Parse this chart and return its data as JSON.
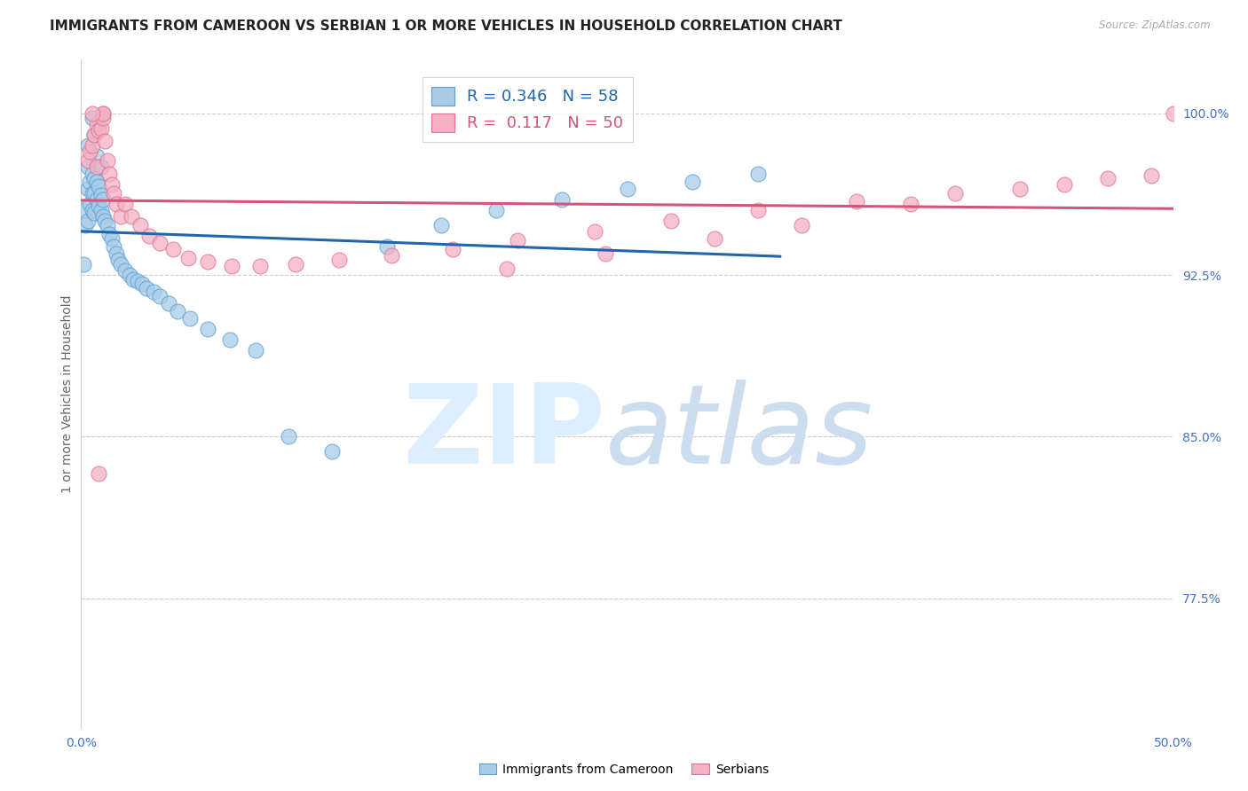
{
  "title": "IMMIGRANTS FROM CAMEROON VS SERBIAN 1 OR MORE VEHICLES IN HOUSEHOLD CORRELATION CHART",
  "source": "Source: ZipAtlas.com",
  "ylabel": "1 or more Vehicles in Household",
  "ytick_values": [
    1.0,
    0.925,
    0.85,
    0.775
  ],
  "xlim": [
    0.0,
    0.5
  ],
  "ylim": [
    0.715,
    1.025
  ],
  "legend_r1_val": "0.346",
  "legend_n1_val": "58",
  "legend_r2_val": "0.117",
  "legend_n2_val": "50",
  "color_blue_fill": "#a8cce8",
  "color_blue_edge": "#5a9fd4",
  "color_pink_fill": "#f4b0c4",
  "color_pink_edge": "#e07090",
  "color_trendline_blue": "#2166ac",
  "color_trendline_pink": "#d4547a",
  "color_axis_text": "#4472c4",
  "color_grid": "#cccccc",
  "blue_x": [
    0.001,
    0.001,
    0.002,
    0.003,
    0.003,
    0.003,
    0.004,
    0.004,
    0.005,
    0.005,
    0.005,
    0.006,
    0.006,
    0.006,
    0.007,
    0.007,
    0.008,
    0.008,
    0.009,
    0.009,
    0.01,
    0.01,
    0.011,
    0.012,
    0.013,
    0.014,
    0.015,
    0.016,
    0.017,
    0.018,
    0.02,
    0.022,
    0.024,
    0.026,
    0.028,
    0.03,
    0.033,
    0.036,
    0.04,
    0.044,
    0.05,
    0.058,
    0.068,
    0.08,
    0.095,
    0.115,
    0.14,
    0.165,
    0.19,
    0.22,
    0.25,
    0.28,
    0.31,
    0.003,
    0.005,
    0.006,
    0.007,
    0.009
  ],
  "blue_y": [
    0.93,
    0.955,
    0.948,
    0.975,
    0.965,
    0.95,
    0.968,
    0.958,
    0.972,
    0.963,
    0.955,
    0.97,
    0.963,
    0.954,
    0.968,
    0.96,
    0.966,
    0.957,
    0.962,
    0.955,
    0.96,
    0.952,
    0.95,
    0.948,
    0.944,
    0.942,
    0.938,
    0.935,
    0.932,
    0.93,
    0.927,
    0.925,
    0.923,
    0.922,
    0.921,
    0.919,
    0.917,
    0.915,
    0.912,
    0.908,
    0.905,
    0.9,
    0.895,
    0.89,
    0.85,
    0.843,
    0.938,
    0.948,
    0.955,
    0.96,
    0.965,
    0.968,
    0.972,
    0.985,
    0.998,
    0.99,
    0.98,
    0.975
  ],
  "pink_x": [
    0.003,
    0.004,
    0.005,
    0.006,
    0.007,
    0.007,
    0.008,
    0.009,
    0.01,
    0.01,
    0.011,
    0.012,
    0.013,
    0.014,
    0.015,
    0.016,
    0.018,
    0.02,
    0.023,
    0.027,
    0.031,
    0.036,
    0.042,
    0.049,
    0.058,
    0.069,
    0.082,
    0.098,
    0.118,
    0.142,
    0.17,
    0.2,
    0.235,
    0.27,
    0.31,
    0.355,
    0.4,
    0.45,
    0.49,
    0.5,
    0.008,
    0.01,
    0.005,
    0.195,
    0.24,
    0.29,
    0.33,
    0.38,
    0.43,
    0.47
  ],
  "pink_y": [
    0.978,
    0.982,
    0.985,
    0.99,
    0.995,
    0.975,
    0.992,
    0.993,
    1.0,
    0.998,
    0.987,
    0.978,
    0.972,
    0.967,
    0.963,
    0.958,
    0.952,
    0.958,
    0.952,
    0.948,
    0.943,
    0.94,
    0.937,
    0.933,
    0.931,
    0.929,
    0.929,
    0.93,
    0.932,
    0.934,
    0.937,
    0.941,
    0.945,
    0.95,
    0.955,
    0.959,
    0.963,
    0.967,
    0.971,
    1.0,
    0.833,
    1.0,
    1.0,
    0.928,
    0.935,
    0.942,
    0.948,
    0.958,
    0.965,
    0.97
  ]
}
